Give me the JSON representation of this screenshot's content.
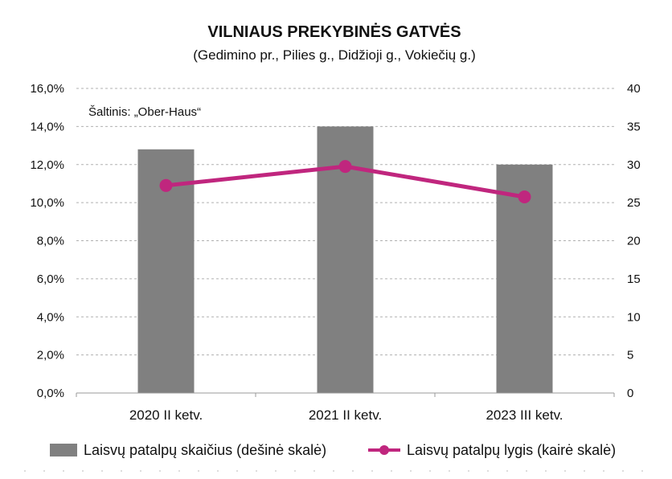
{
  "chart_data": {
    "type": "bar+line",
    "title": "VILNIAUS PREKYBINĖS GATVĖS",
    "subtitle": "(Gedimino pr., Pilies g., Didžioji g., Vokiečių g.)",
    "source": "Šaltinis: „Ober-Haus“",
    "categories": [
      "2020 II ketv.",
      "2021 II ketv.",
      "2023 III ketv."
    ],
    "series": [
      {
        "name": "Laisvų patalpų skaičius (dešinė skalė)",
        "type": "bar",
        "axis": "right",
        "color": "#808080",
        "values": [
          32,
          35,
          30
        ]
      },
      {
        "name": "Laisvų patalpų lygis (kairė skalė)",
        "type": "line",
        "axis": "left",
        "color": "#c0267e",
        "values": [
          0.109,
          0.119,
          0.103
        ]
      }
    ],
    "left_axis": {
      "min": 0,
      "max": 0.16,
      "step": 0.02,
      "tick_labels": [
        "0,0%",
        "2,0%",
        "4,0%",
        "6,0%",
        "8,0%",
        "10,0%",
        "12,0%",
        "14,0%",
        "16,0%"
      ]
    },
    "right_axis": {
      "min": 0,
      "max": 40,
      "step": 5,
      "tick_labels": [
        "0",
        "5",
        "10",
        "15",
        "20",
        "25",
        "30",
        "35",
        "40"
      ]
    },
    "grid": true,
    "legend_position": "bottom"
  }
}
